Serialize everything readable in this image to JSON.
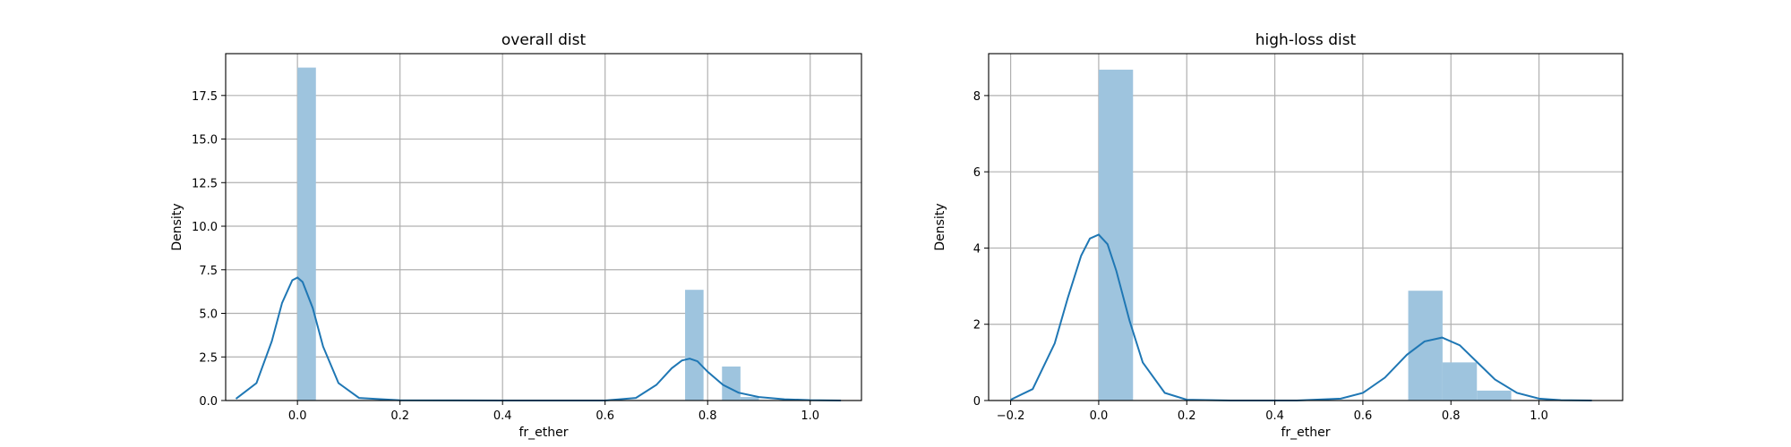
{
  "colors": {
    "bar": "#9ec4de",
    "line": "#1f77b4"
  },
  "chart_data": [
    {
      "type": "bar",
      "title": "overall dist",
      "xlabel": "fr_ether",
      "ylabel": "Density",
      "xlim": [
        -0.14,
        1.1
      ],
      "ylim": [
        0,
        19.9
      ],
      "grid": true,
      "xticks": [
        0.0,
        0.2,
        0.4,
        0.6,
        0.8,
        1.0
      ],
      "xtick_labels": [
        "0.0",
        "0.2",
        "0.4",
        "0.6",
        "0.8",
        "1.0"
      ],
      "yticks": [
        0.0,
        2.5,
        5.0,
        7.5,
        10.0,
        12.5,
        15.0,
        17.5
      ],
      "ytick_labels": [
        "0.0",
        "2.5",
        "5.0",
        "7.5",
        "10.0",
        "12.5",
        "15.0",
        "17.5"
      ],
      "bins": [
        {
          "x0": 0.0,
          "x1": 0.036,
          "value": 19.1
        },
        {
          "x0": 0.756,
          "x1": 0.792,
          "value": 6.35
        },
        {
          "x0": 0.828,
          "x1": 0.864,
          "value": 1.95
        },
        {
          "x0": 0.864,
          "x1": 0.9,
          "value": 0.2
        }
      ],
      "kde": {
        "x": [
          -0.12,
          -0.08,
          -0.05,
          -0.03,
          -0.01,
          0.0,
          0.01,
          0.03,
          0.05,
          0.08,
          0.12,
          0.2,
          0.4,
          0.6,
          0.66,
          0.7,
          0.73,
          0.75,
          0.765,
          0.78,
          0.8,
          0.83,
          0.86,
          0.9,
          0.95,
          1.0,
          1.06
        ],
        "y": [
          0.1,
          1.0,
          3.4,
          5.6,
          6.9,
          7.05,
          6.8,
          5.3,
          3.1,
          1.0,
          0.15,
          0.01,
          0.0,
          0.0,
          0.15,
          0.9,
          1.85,
          2.3,
          2.4,
          2.25,
          1.65,
          0.9,
          0.45,
          0.2,
          0.07,
          0.02,
          0.0
        ]
      }
    },
    {
      "type": "bar",
      "title": "high-loss dist",
      "xlabel": "fr_ether",
      "ylabel": "Density",
      "xlim": [
        -0.25,
        1.19
      ],
      "ylim": [
        0,
        9.1
      ],
      "grid": true,
      "xticks": [
        -0.2,
        0.0,
        0.2,
        0.4,
        0.6,
        0.8,
        1.0
      ],
      "xtick_labels": [
        "−0.2",
        "0.0",
        "0.2",
        "0.4",
        "0.6",
        "0.8",
        "1.0"
      ],
      "yticks": [
        0,
        2,
        4,
        6,
        8
      ],
      "ytick_labels": [
        "0",
        "2",
        "4",
        "6",
        "8"
      ],
      "bins": [
        {
          "x0": 0.0,
          "x1": 0.078,
          "value": 8.68
        },
        {
          "x0": 0.703,
          "x1": 0.781,
          "value": 2.88
        },
        {
          "x0": 0.781,
          "x1": 0.859,
          "value": 1.0
        },
        {
          "x0": 0.859,
          "x1": 0.937,
          "value": 0.26
        }
      ],
      "kde": {
        "x": [
          -0.2,
          -0.15,
          -0.1,
          -0.07,
          -0.04,
          -0.02,
          0.0,
          0.02,
          0.04,
          0.07,
          0.1,
          0.15,
          0.2,
          0.3,
          0.45,
          0.55,
          0.6,
          0.65,
          0.7,
          0.74,
          0.78,
          0.82,
          0.86,
          0.9,
          0.95,
          1.0,
          1.05,
          1.12
        ],
        "y": [
          0.02,
          0.3,
          1.5,
          2.7,
          3.8,
          4.25,
          4.35,
          4.1,
          3.4,
          2.1,
          1.0,
          0.2,
          0.02,
          0.0,
          0.0,
          0.05,
          0.2,
          0.6,
          1.2,
          1.55,
          1.65,
          1.45,
          1.0,
          0.55,
          0.2,
          0.05,
          0.01,
          0.0
        ]
      }
    }
  ]
}
